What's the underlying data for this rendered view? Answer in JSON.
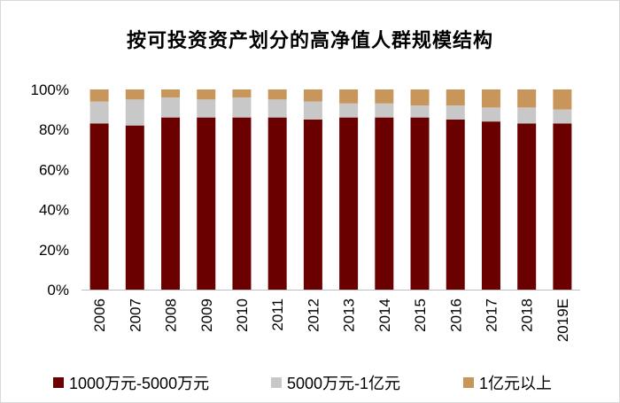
{
  "chart_data": {
    "type": "bar",
    "stacked": true,
    "title": "按可投资资产划分的高净值人群规模结构",
    "categories": [
      "2006",
      "2007",
      "2008",
      "2009",
      "2010",
      "2011",
      "2012",
      "2013",
      "2014",
      "2015",
      "2016",
      "2017",
      "2018",
      "2019E"
    ],
    "series": [
      {
        "name": "1000万元-5000万元",
        "color": "#6b0000",
        "values": [
          83,
          82,
          86,
          86,
          86,
          86,
          85,
          86,
          86,
          86,
          85,
          84,
          83,
          83
        ]
      },
      {
        "name": "5000万元-1亿元",
        "color": "#c8c8c8",
        "values": [
          11,
          13,
          10,
          9,
          10,
          9,
          9,
          7,
          7,
          6,
          7,
          7,
          8,
          7
        ]
      },
      {
        "name": "1亿元以上",
        "color": "#c8965a",
        "values": [
          6,
          5,
          4,
          5,
          4,
          5,
          6,
          7,
          7,
          8,
          8,
          9,
          9,
          10
        ]
      }
    ],
    "ylim": [
      0,
      100
    ],
    "yticks": [
      0,
      20,
      40,
      60,
      80,
      100
    ],
    "ytick_labels": [
      "0%",
      "20%",
      "40%",
      "60%",
      "80%",
      "100%"
    ],
    "xlabel": "",
    "ylabel": "",
    "legend_position": "bottom"
  }
}
